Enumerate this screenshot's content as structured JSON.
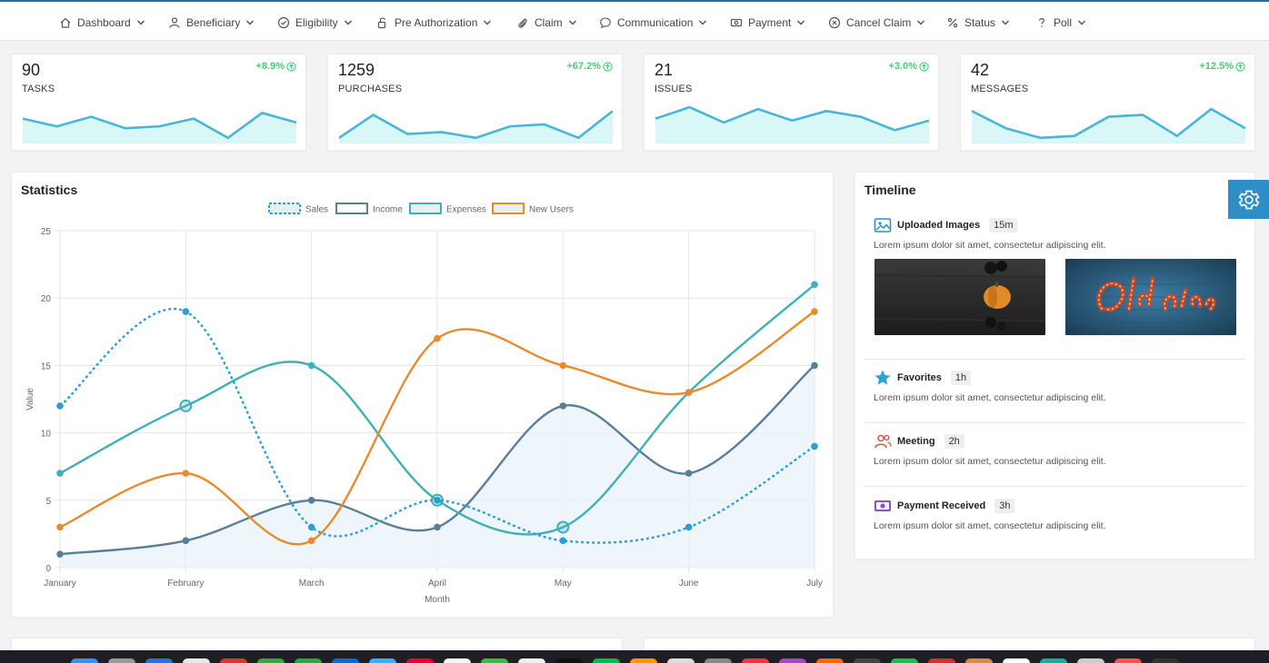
{
  "nav": {
    "items": [
      {
        "label": "Dashboard",
        "icon": "home-icon"
      },
      {
        "label": "Beneficiary",
        "icon": "user-icon"
      },
      {
        "label": "Eligibility",
        "icon": "check-circle-icon"
      },
      {
        "label": "Pre Authorization",
        "icon": "unlock-icon"
      },
      {
        "label": "Claim",
        "icon": "paperclip-icon"
      },
      {
        "label": "Communication",
        "icon": "chat-icon"
      },
      {
        "label": "Payment",
        "icon": "banknote-icon"
      },
      {
        "label": "Cancel Claim",
        "icon": "x-circle-icon"
      },
      {
        "label": "Status",
        "icon": "percent-icon"
      },
      {
        "label": "Poll",
        "icon": "question-icon"
      }
    ]
  },
  "kpis": [
    {
      "value": "90",
      "label": "TASKS",
      "change": "+8.9%",
      "spark": [
        8,
        6,
        8.5,
        5.5,
        6,
        8,
        3,
        9.5,
        7
      ]
    },
    {
      "value": "1259",
      "label": "PURCHASES",
      "change": "+67.2%",
      "spark": [
        3,
        9,
        4,
        4.5,
        3,
        6,
        6.5,
        3,
        10
      ]
    },
    {
      "value": "21",
      "label": "ISSUES",
      "change": "+3.0%",
      "spark": [
        8,
        11,
        7,
        10.5,
        7.5,
        10,
        8.5,
        5,
        7.5
      ]
    },
    {
      "value": "42",
      "label": "MESSAGES",
      "change": "+12.5%",
      "spark": [
        10,
        5.5,
        3,
        3.5,
        8.5,
        9,
        3.5,
        10.5,
        5.5
      ]
    }
  ],
  "statistics": {
    "title": "Statistics"
  },
  "chart_data": {
    "type": "line",
    "categories": [
      "January",
      "February",
      "March",
      "April",
      "May",
      "June",
      "July"
    ],
    "series": [
      {
        "name": "Sales",
        "values": [
          12,
          19,
          3,
          5,
          2,
          3,
          9
        ],
        "color": "#2a9fd6",
        "style": "dashed"
      },
      {
        "name": "Income",
        "values": [
          1,
          2,
          5,
          3,
          12,
          7,
          15
        ],
        "color": "#587f97",
        "style": "solid",
        "fill": true
      },
      {
        "name": "Expenses",
        "values": [
          7,
          12,
          15,
          5,
          3,
          13,
          21
        ],
        "color": "#3fb0b8",
        "style": "solid"
      },
      {
        "name": "New Users",
        "values": [
          3,
          7,
          2,
          17,
          15,
          13,
          19
        ],
        "color": "#e88b2b",
        "style": "solid"
      }
    ],
    "xlabel": "Month",
    "ylabel": "Value",
    "ylim": [
      0,
      25
    ],
    "yticks": [
      "0",
      "5",
      "10",
      "15",
      "20",
      "25"
    ],
    "grid": true,
    "legend": "top-center"
  },
  "timeline": {
    "title": "Timeline",
    "items": [
      {
        "title": "Uploaded Images",
        "time": "15m",
        "text": "Lorem ipsum dolor sit amet, consectetur adipiscing elit.",
        "icon": "image-icon"
      },
      {
        "title": "Favorites",
        "time": "1h",
        "text": "Lorem ipsum dolor sit amet, consectetur adipiscing elit.",
        "icon": "star-icon"
      },
      {
        "title": "Meeting",
        "time": "2h",
        "text": "Lorem ipsum dolor sit amet, consectetur adipiscing elit.",
        "icon": "people-icon"
      },
      {
        "title": "Payment Received",
        "time": "3h",
        "text": "Lorem ipsum dolor sit amet, consectetur adipiscing elit.",
        "icon": "money-icon"
      }
    ]
  },
  "colors": {
    "accent": "#2e8fc8",
    "positive": "#4ec97b",
    "spark_line": "#4ab6d6",
    "spark_fill": "#d9f7f6"
  }
}
